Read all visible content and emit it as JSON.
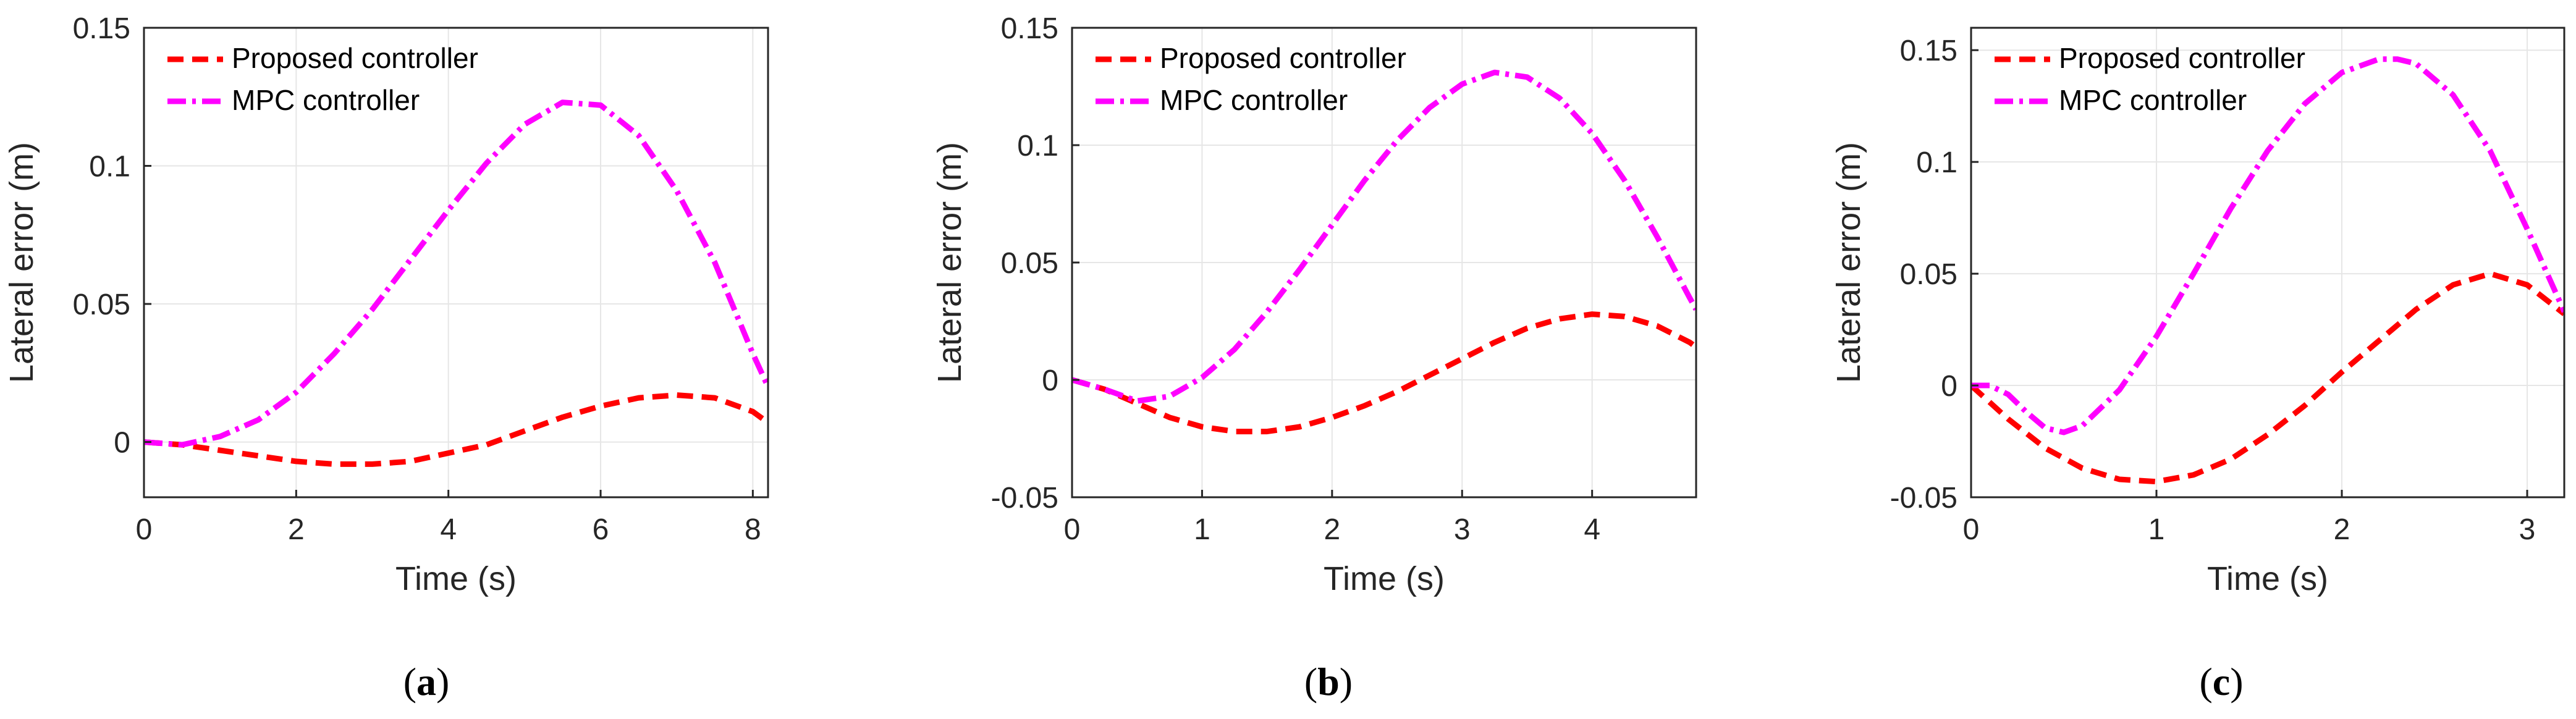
{
  "colors": {
    "proposed": "#ff0000",
    "mpc": "#ff00ff",
    "axis": "#262626",
    "grid": "#e6e6e6"
  },
  "chart_data": [
    {
      "type": "line",
      "caption_letter": "a",
      "xlabel": "Time (s)",
      "ylabel": "Lateral error (m)",
      "xlim": [
        0,
        8.2
      ],
      "ylim": [
        -0.02,
        0.15
      ],
      "xticks": [
        0,
        2,
        4,
        6,
        8
      ],
      "xtick_labels": [
        "0",
        "2",
        "4",
        "6",
        "8"
      ],
      "yticks": [
        0,
        0.05,
        0.1,
        0.15
      ],
      "ytick_labels": [
        "0",
        "0.05",
        "0.1",
        "0.15"
      ],
      "grid": true,
      "legend": "top-left",
      "series": [
        {
          "name": "Proposed controller",
          "style": "dashed",
          "x": [
            0,
            0.5,
            1,
            1.5,
            2,
            2.5,
            3,
            3.5,
            4,
            4.5,
            5,
            5.5,
            6,
            6.5,
            7,
            7.5,
            8,
            8.2
          ],
          "y": [
            0,
            -0.001,
            -0.003,
            -0.005,
            -0.007,
            -0.008,
            -0.008,
            -0.007,
            -0.004,
            -0.001,
            0.004,
            0.009,
            0.013,
            0.016,
            0.017,
            0.016,
            0.011,
            0.007
          ]
        },
        {
          "name": "MPC controller",
          "style": "dashdot",
          "x": [
            0,
            0.5,
            1,
            1.5,
            2,
            2.5,
            3,
            3.5,
            4,
            4.5,
            5,
            5.5,
            6,
            6.5,
            7,
            7.5,
            8,
            8.2
          ],
          "y": [
            0,
            -0.001,
            0.002,
            0.008,
            0.018,
            0.032,
            0.048,
            0.066,
            0.084,
            0.101,
            0.115,
            0.123,
            0.122,
            0.111,
            0.091,
            0.065,
            0.032,
            0.02
          ]
        }
      ]
    },
    {
      "type": "line",
      "caption_letter": "b",
      "xlabel": "Time (s)",
      "ylabel": "Lateral error (m)",
      "xlim": [
        0,
        4.8
      ],
      "ylim": [
        -0.05,
        0.15
      ],
      "xticks": [
        0,
        1,
        2,
        3,
        4
      ],
      "xtick_labels": [
        "0",
        "1",
        "2",
        "3",
        "4"
      ],
      "yticks": [
        -0.05,
        0,
        0.05,
        0.1,
        0.15
      ],
      "ytick_labels": [
        "-0.05",
        "0",
        "0.05",
        "0.1",
        "0.15"
      ],
      "grid": true,
      "legend": "top-left",
      "series": [
        {
          "name": "Proposed controller",
          "style": "dashed",
          "x": [
            0,
            0.25,
            0.5,
            0.75,
            1,
            1.25,
            1.5,
            1.75,
            2,
            2.25,
            2.5,
            2.75,
            3,
            3.25,
            3.5,
            3.75,
            4,
            4.25,
            4.5,
            4.75,
            4.8
          ],
          "y": [
            0,
            -0.004,
            -0.01,
            -0.016,
            -0.02,
            -0.022,
            -0.022,
            -0.02,
            -0.016,
            -0.011,
            -0.005,
            0.002,
            0.009,
            0.016,
            0.022,
            0.026,
            0.028,
            0.027,
            0.023,
            0.016,
            0.014
          ]
        },
        {
          "name": "MPC controller",
          "style": "dashdot",
          "x": [
            0,
            0.25,
            0.5,
            0.75,
            1,
            1.25,
            1.5,
            1.75,
            2,
            2.25,
            2.5,
            2.75,
            3,
            3.25,
            3.5,
            3.75,
            4,
            4.25,
            4.5,
            4.75,
            4.8
          ],
          "y": [
            0,
            -0.004,
            -0.009,
            -0.007,
            0.001,
            0.013,
            0.029,
            0.047,
            0.066,
            0.085,
            0.102,
            0.116,
            0.126,
            0.131,
            0.129,
            0.12,
            0.105,
            0.085,
            0.061,
            0.035,
            0.03
          ]
        }
      ]
    },
    {
      "type": "line",
      "caption_letter": "c",
      "xlabel": "Time (s)",
      "ylabel": "Lateral error (m)",
      "xlim": [
        0,
        3.2
      ],
      "ylim": [
        -0.05,
        0.16
      ],
      "xticks": [
        0,
        1,
        2,
        3
      ],
      "xtick_labels": [
        "0",
        "1",
        "2",
        "3"
      ],
      "yticks": [
        -0.05,
        0,
        0.05,
        0.1,
        0.15
      ],
      "ytick_labels": [
        "-0.05",
        "0",
        "0.05",
        "0.1",
        "0.15"
      ],
      "grid": true,
      "legend": "top-left",
      "series": [
        {
          "name": "Proposed controller",
          "style": "dashed",
          "x": [
            0,
            0.2,
            0.4,
            0.6,
            0.8,
            1.0,
            1.2,
            1.4,
            1.6,
            1.8,
            2.0,
            2.2,
            2.4,
            2.6,
            2.8,
            3.0,
            3.2
          ],
          "y": [
            0,
            -0.015,
            -0.028,
            -0.037,
            -0.042,
            -0.043,
            -0.04,
            -0.033,
            -0.022,
            -0.009,
            0.006,
            0.02,
            0.034,
            0.045,
            0.05,
            0.045,
            0.032
          ]
        },
        {
          "name": "MPC controller",
          "style": "dashdot",
          "x": [
            0,
            0.1,
            0.2,
            0.3,
            0.4,
            0.5,
            0.6,
            0.8,
            1.0,
            1.2,
            1.4,
            1.6,
            1.8,
            2.0,
            2.2,
            2.3,
            2.4,
            2.6,
            2.8,
            3.0,
            3.2
          ],
          "y": [
            0,
            0,
            -0.004,
            -0.012,
            -0.019,
            -0.021,
            -0.018,
            -0.002,
            0.022,
            0.05,
            0.079,
            0.105,
            0.126,
            0.14,
            0.146,
            0.146,
            0.144,
            0.13,
            0.105,
            0.07,
            0.033
          ]
        }
      ]
    }
  ]
}
